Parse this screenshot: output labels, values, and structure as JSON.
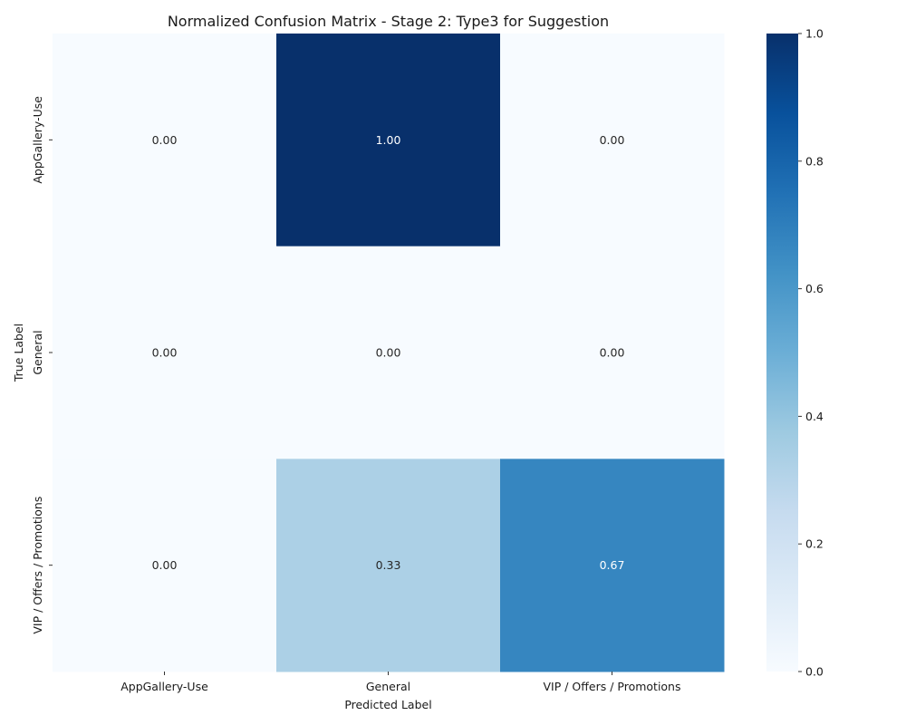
{
  "chart_data": {
    "type": "heatmap",
    "title": "Normalized Confusion Matrix - Stage 2: Type3 for Suggestion",
    "xlabel": "Predicted Label",
    "ylabel": "True Label",
    "x_categories": [
      "AppGallery-Use",
      "General",
      "VIP / Offers / Promotions"
    ],
    "y_categories": [
      "AppGallery-Use",
      "General",
      "VIP / Offers / Promotions"
    ],
    "values": [
      [
        0.0,
        1.0,
        0.0
      ],
      [
        0.0,
        0.0,
        0.0
      ],
      [
        0.0,
        0.33,
        0.67
      ]
    ],
    "value_format": "0.00",
    "colormap": "Blues",
    "color_low": "#f7fbff",
    "color_high": "#08306b",
    "colorbar": {
      "range": [
        0.0,
        1.0
      ],
      "ticks": [
        "0.0",
        "0.2",
        "0.4",
        "0.6",
        "0.8",
        "1.0"
      ]
    }
  }
}
